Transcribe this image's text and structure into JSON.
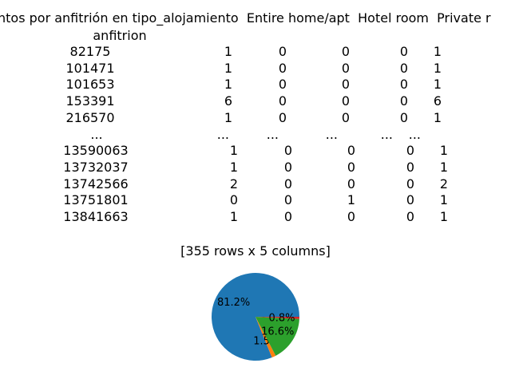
{
  "chart_data": {
    "type": "pie",
    "title_text": "ntos por anfitrión en tipo_alojamiento  Entire home/apt  Hotel room  Private r",
    "index_name": "anfitrion",
    "rows": [
      {
        "id": "82175",
        "cells": [
          "1",
          "0",
          "0",
          "0",
          "1"
        ]
      },
      {
        "id": "101471",
        "cells": [
          "1",
          "0",
          "0",
          "0",
          "1"
        ]
      },
      {
        "id": "101653",
        "cells": [
          "1",
          "0",
          "0",
          "0",
          "1"
        ]
      },
      {
        "id": "153391",
        "cells": [
          "6",
          "0",
          "0",
          "0",
          "6"
        ]
      },
      {
        "id": "216570",
        "cells": [
          "1",
          "0",
          "0",
          "0",
          "1"
        ]
      },
      {
        "id": "...",
        "cells": [
          "...",
          "...",
          "...",
          "...",
          "..."
        ]
      },
      {
        "id": "13590063",
        "cells": [
          "1",
          "0",
          "0",
          "0",
          "1"
        ]
      },
      {
        "id": "13732037",
        "cells": [
          "1",
          "0",
          "0",
          "0",
          "1"
        ]
      },
      {
        "id": "13742566",
        "cells": [
          "2",
          "0",
          "0",
          "0",
          "2"
        ]
      },
      {
        "id": "13751801",
        "cells": [
          "0",
          "0",
          "1",
          "0",
          "1"
        ]
      },
      {
        "id": "13841663",
        "cells": [
          "1",
          "0",
          "0",
          "0",
          "1"
        ]
      }
    ],
    "summary": "[355 rows x 5 columns]",
    "slices": [
      {
        "label": "81.2%",
        "value": 81.2,
        "color": "#1f77b4"
      },
      {
        "label": "1.5%",
        "value": 1.5,
        "color": "#ff7f0e"
      },
      {
        "label": "16.6%",
        "value": 16.6,
        "color": "#2ca02c"
      },
      {
        "label": "0.8%",
        "value": 0.8,
        "color": "#d62728"
      }
    ]
  }
}
